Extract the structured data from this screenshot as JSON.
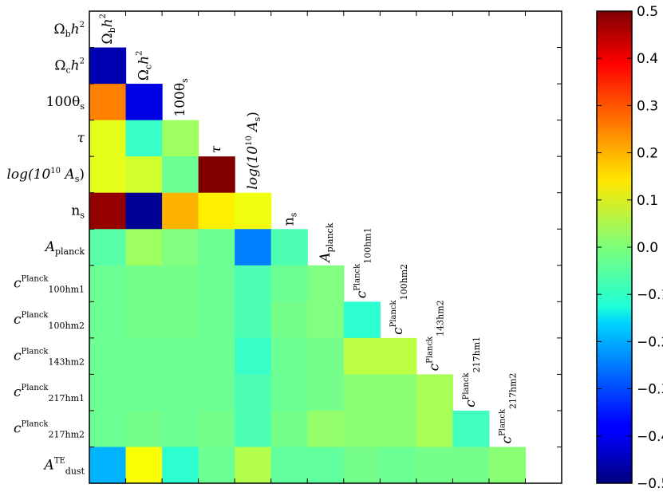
{
  "chart_data": {
    "type": "heatmap",
    "title": "",
    "xlabel": "",
    "ylabel": "",
    "parameters": [
      {
        "base": "Ω",
        "sub": "b",
        "tail": "h",
        "sup": "2"
      },
      {
        "base": "Ω",
        "sub": "c",
        "tail": "h",
        "sup": "2"
      },
      {
        "base": "100θ",
        "sub": "s"
      },
      {
        "base": "τ"
      },
      {
        "base": "log(10",
        "sup": "10",
        "tail": " A",
        "sub": "s",
        "end": ")"
      },
      {
        "base": "n",
        "sub": "s"
      },
      {
        "base": "A",
        "sub": "planck"
      },
      {
        "base": "c",
        "sup": "Planck",
        "sub": "100hm1"
      },
      {
        "base": "c",
        "sup": "Planck",
        "sub": "100hm2"
      },
      {
        "base": "c",
        "sup": "Planck",
        "sub": "143hm2"
      },
      {
        "base": "c",
        "sup": "Planck",
        "sub": "217hm1"
      },
      {
        "base": "c",
        "sup": "Planck",
        "sub": "217hm2"
      },
      {
        "base": "A",
        "sup": "TE",
        "sub": "dust"
      }
    ],
    "matrix": [
      [],
      [
        -0.45
      ],
      [
        0.25,
        -0.4
      ],
      [
        0.1,
        -0.07,
        0.03
      ],
      [
        0.1,
        0.08,
        -0.02,
        0.5
      ],
      [
        0.48,
        -0.48,
        0.2,
        0.14,
        0.11
      ],
      [
        -0.04,
        0.03,
        0.0,
        -0.02,
        -0.25,
        -0.05
      ],
      [
        -0.02,
        -0.01,
        -0.01,
        -0.02,
        -0.05,
        -0.02,
        0.0
      ],
      [
        -0.02,
        -0.01,
        -0.01,
        -0.02,
        -0.05,
        -0.01,
        0.0,
        -0.08
      ],
      [
        -0.02,
        -0.02,
        -0.02,
        -0.02,
        -0.07,
        -0.02,
        -0.01,
        0.06,
        0.06
      ],
      [
        -0.02,
        -0.02,
        -0.02,
        -0.02,
        -0.05,
        -0.02,
        -0.01,
        0.01,
        0.01,
        0.04
      ],
      [
        -0.02,
        -0.01,
        -0.02,
        -0.01,
        -0.05,
        -0.01,
        0.02,
        0.01,
        0.01,
        0.04,
        -0.06
      ],
      [
        -0.2,
        0.12,
        -0.08,
        -0.02,
        0.05,
        -0.03,
        -0.03,
        -0.01,
        -0.02,
        -0.01,
        -0.01,
        0.01
      ]
    ],
    "colorbar": {
      "range": [
        -0.5,
        0.5
      ],
      "ticks": [
        "0.5",
        "0.4",
        "0.3",
        "0.2",
        "0.1",
        "0.0",
        "−0.1",
        "−0.2",
        "−0.3",
        "−0.4",
        "−0.5"
      ],
      "colormap": "jet"
    }
  }
}
